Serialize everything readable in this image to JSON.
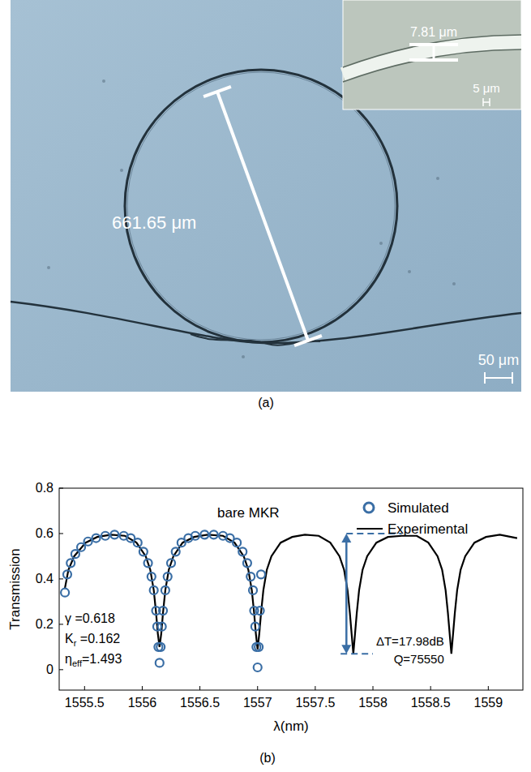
{
  "figure_a": {
    "diameter_label": "661.65 μm",
    "inset_width_label": "7.81 μm",
    "inset_scale_label": "5 μm",
    "scale_label": "50 μm",
    "caption": "(a)"
  },
  "chart_data": {
    "type": "line",
    "caption": "(b)",
    "x_label": "λ(nm)",
    "y_label": "Transmission",
    "xlim": [
      1555.28,
      1559.3
    ],
    "xticks": [
      1555.5,
      1556,
      1556.5,
      1557,
      1557.5,
      1558,
      1558.5,
      1559
    ],
    "ylim": [
      -0.09,
      0.8
    ],
    "yticks": [
      0,
      0.2,
      0.4,
      0.6,
      0.8
    ],
    "grid": false,
    "legend": "upper right",
    "series": [
      {
        "name": "Simulated",
        "type": "scatter",
        "marker": "circle",
        "color": "#3a6ea5",
        "x": [
          1555.33,
          1555.35,
          1555.38,
          1555.42,
          1555.47,
          1555.53,
          1555.6,
          1555.68,
          1555.76,
          1555.84,
          1555.9,
          1555.96,
          1556.01,
          1556.05,
          1556.08,
          1556.1,
          1556.12,
          1556.13,
          1556.14,
          1556.15,
          1556.16,
          1556.17,
          1556.18,
          1556.2,
          1556.22,
          1556.25,
          1556.29,
          1556.34,
          1556.4,
          1556.46,
          1556.54,
          1556.62,
          1556.7,
          1556.76,
          1556.82,
          1556.87,
          1556.91,
          1556.94,
          1556.96,
          1556.97,
          1556.98,
          1556.99,
          1557.0,
          1557.01,
          1557.02,
          1557.03
        ],
        "values": [
          0.34,
          0.42,
          0.47,
          0.51,
          0.54,
          0.565,
          0.58,
          0.59,
          0.595,
          0.59,
          0.58,
          0.56,
          0.52,
          0.47,
          0.41,
          0.35,
          0.26,
          0.19,
          0.1,
          0.03,
          0.1,
          0.19,
          0.26,
          0.35,
          0.41,
          0.47,
          0.52,
          0.56,
          0.58,
          0.59,
          0.595,
          0.595,
          0.59,
          0.58,
          0.56,
          0.52,
          0.47,
          0.41,
          0.35,
          0.26,
          0.19,
          0.1,
          0.01,
          0.1,
          0.26,
          0.42
        ]
      },
      {
        "name": "Experimental",
        "type": "line",
        "line_style": "solid",
        "color": "#000000",
        "x": [
          1555.33,
          1555.36,
          1555.41,
          1555.51,
          1555.61,
          1555.73,
          1555.85,
          1555.95,
          1556.03,
          1556.07,
          1556.1,
          1556.12,
          1556.135,
          1556.15,
          1556.165,
          1556.18,
          1556.2,
          1556.23,
          1556.27,
          1556.35,
          1556.45,
          1556.57,
          1556.7,
          1556.8,
          1556.88,
          1556.92,
          1556.95,
          1556.97,
          1556.985,
          1557.0,
          1557.015,
          1557.03,
          1557.05,
          1557.08,
          1557.12,
          1557.2,
          1557.3,
          1557.41,
          1557.53,
          1557.63,
          1557.71,
          1557.75,
          1557.78,
          1557.8,
          1557.815,
          1557.83,
          1557.845,
          1557.86,
          1557.88,
          1557.91,
          1557.95,
          1558.03,
          1558.13,
          1558.25,
          1558.38,
          1558.48,
          1558.56,
          1558.6,
          1558.63,
          1558.65,
          1558.665,
          1558.68,
          1558.695,
          1558.71,
          1558.73,
          1558.76,
          1558.8,
          1558.88,
          1558.98,
          1559.1,
          1559.25
        ],
        "values": [
          0.36,
          0.44,
          0.5,
          0.56,
          0.585,
          0.595,
          0.59,
          0.56,
          0.5,
          0.44,
          0.35,
          0.25,
          0.16,
          0.1,
          0.16,
          0.25,
          0.35,
          0.44,
          0.5,
          0.56,
          0.585,
          0.595,
          0.59,
          0.56,
          0.5,
          0.44,
          0.35,
          0.25,
          0.16,
          0.09,
          0.16,
          0.25,
          0.35,
          0.44,
          0.5,
          0.56,
          0.585,
          0.595,
          0.59,
          0.56,
          0.5,
          0.44,
          0.35,
          0.25,
          0.16,
          0.07,
          0.16,
          0.25,
          0.35,
          0.44,
          0.5,
          0.56,
          0.585,
          0.59,
          0.59,
          0.56,
          0.5,
          0.44,
          0.35,
          0.25,
          0.16,
          0.07,
          0.16,
          0.25,
          0.35,
          0.44,
          0.5,
          0.56,
          0.585,
          0.595,
          0.58
        ]
      }
    ],
    "annotations": {
      "label": "bare MKR",
      "params": [
        {
          "symbol": "γ",
          "value": " =0.618"
        },
        {
          "symbol": "K",
          "subscript": "r",
          "value": " =0.162"
        },
        {
          "symbol": "η",
          "subscript": "eff",
          "value": "=1.493"
        }
      ],
      "delta_t": {
        "label": "ΔT=17.98dB",
        "x": 1557.77,
        "y_top": 0.6,
        "y_bottom": 0.07,
        "top_line_x": [
          1557.77,
          1558.25
        ],
        "bottom_line_x": [
          1557.72,
          1558.0
        ]
      },
      "q_label": "Q=75550"
    }
  }
}
